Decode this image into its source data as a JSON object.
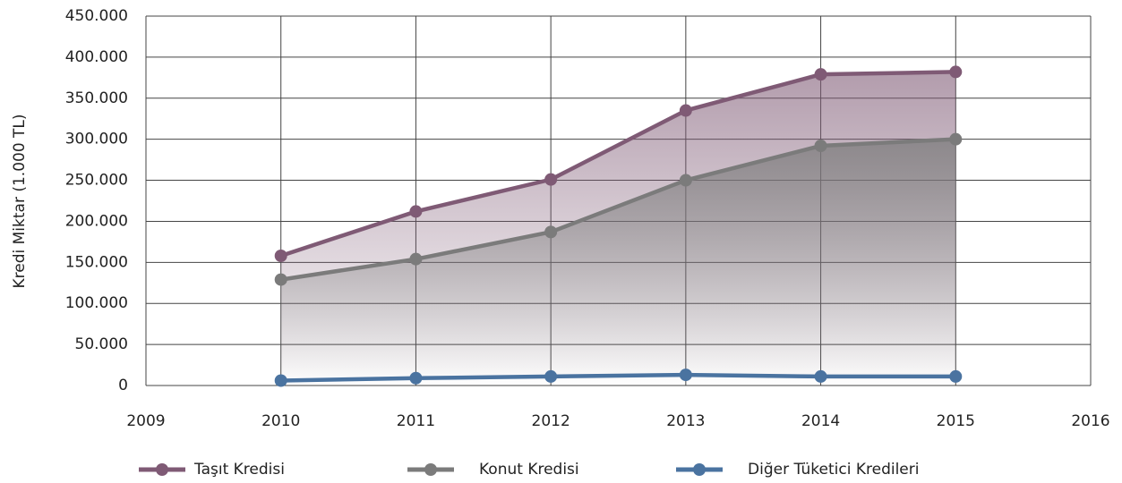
{
  "chart_data": {
    "type": "line",
    "y_label": "Kredi Miktar (1.000 TL)",
    "x": [
      2010,
      2011,
      2012,
      2013,
      2014,
      2015
    ],
    "xlim": [
      2009,
      2016
    ],
    "xticks": [
      2009,
      2010,
      2011,
      2012,
      2013,
      2014,
      2015,
      2016
    ],
    "ylim": [
      0,
      450000
    ],
    "yticks": [
      0,
      {
        "value": 50000,
        "label": "50.000"
      },
      {
        "value": 100000,
        "label": "100.000"
      },
      {
        "value": 150000,
        "label": "150.000"
      },
      {
        "value": 200000,
        "label": "200.000"
      },
      {
        "value": 250000,
        "label": "250.000"
      },
      {
        "value": 300000,
        "label": "300.000"
      },
      {
        "value": 350000,
        "label": "350.000"
      },
      {
        "value": 400000,
        "label": "400.000"
      },
      {
        "value": 450000,
        "label": "450.000"
      }
    ],
    "grid": true,
    "legend": "bottom",
    "series": [
      {
        "name": "Taşıt Kredisi",
        "color": "#7f5a75",
        "values": [
          158000,
          212000,
          251000,
          335000,
          379000,
          382000
        ]
      },
      {
        "name": "Konut Kredisi",
        "color": "#7b7b7b",
        "values": [
          129000,
          154000,
          187000,
          250000,
          292000,
          300000
        ]
      },
      {
        "name": "Diğer Tüketici Kredileri",
        "color": "#4a73a0",
        "values": [
          6000,
          9000,
          11000,
          13000,
          11000,
          11000
        ]
      }
    ]
  }
}
